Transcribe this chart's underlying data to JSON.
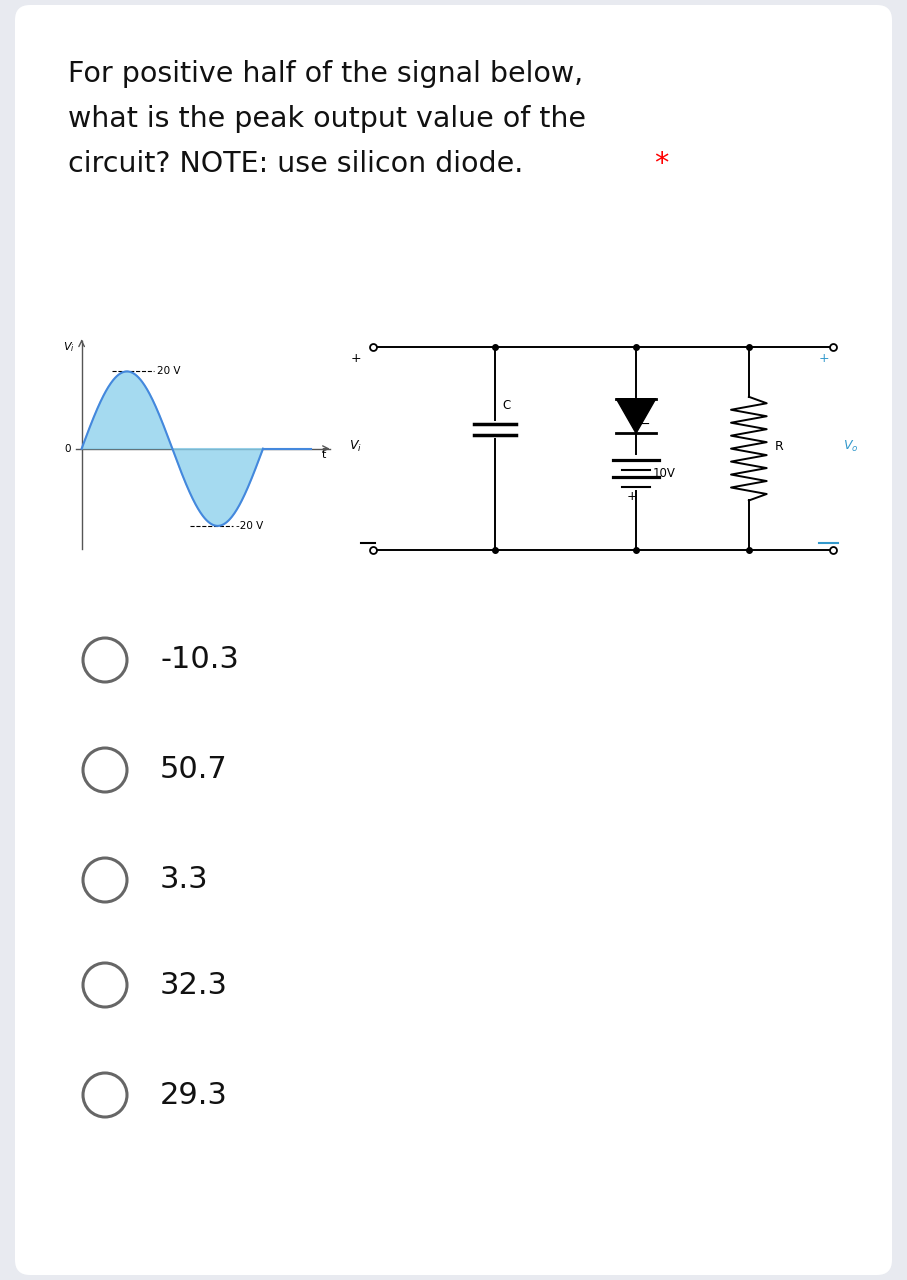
{
  "title_line1": "For positive half of the signal below,",
  "title_line2": "what is the peak output value of the",
  "title_line3": "circuit? NOTE: use silicon diode.",
  "asterisk": "*",
  "bg_color": "#e8eaf0",
  "card_color": "#ffffff",
  "choices": [
    "-10.3",
    "50.7",
    "3.3",
    "32.3",
    "29.3"
  ],
  "signal_peak_pos": "20 V",
  "signal_peak_neg": "-20 V",
  "circuit_voltage": "10V",
  "title_fontsize": 20.5,
  "choice_fontsize": 22,
  "circle_color": "#666666"
}
